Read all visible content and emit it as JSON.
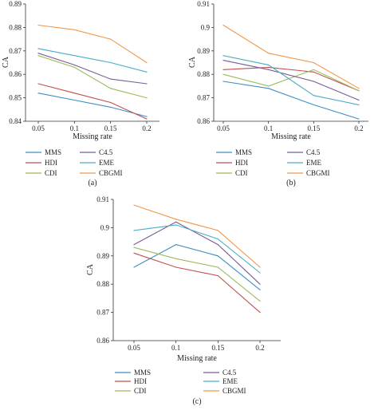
{
  "chart_data": [
    {
      "type": "line",
      "panel_label": "(a)",
      "xlabel": "Missing rate",
      "ylabel": "CA",
      "x": [
        0.05,
        0.1,
        0.15,
        0.2
      ],
      "x_ticks": [
        "0.05",
        "0.1",
        "0.15",
        "0.2"
      ],
      "ylim": [
        0.84,
        0.89
      ],
      "y_ticks": [
        "0.84",
        "0.85",
        "0.86",
        "0.87",
        "0.88",
        "0.89"
      ],
      "series": [
        {
          "name": "MMS",
          "color": "#3d8fc4",
          "values": [
            0.852,
            0.849,
            0.846,
            0.842
          ]
        },
        {
          "name": "HDI",
          "color": "#c0504d",
          "values": [
            0.856,
            0.852,
            0.848,
            0.841
          ]
        },
        {
          "name": "CDI",
          "color": "#9bbb59",
          "values": [
            0.868,
            0.863,
            0.854,
            0.85
          ]
        },
        {
          "name": "C4.5",
          "color": "#7a5c94",
          "values": [
            0.869,
            0.864,
            0.858,
            0.856
          ]
        },
        {
          "name": "EME",
          "color": "#4bacc6",
          "values": [
            0.871,
            0.868,
            0.865,
            0.861
          ]
        },
        {
          "name": "CBGMI",
          "color": "#f0974a",
          "values": [
            0.881,
            0.879,
            0.875,
            0.865
          ]
        }
      ]
    },
    {
      "type": "line",
      "panel_label": "(b)",
      "xlabel": "Missing rate",
      "ylabel": "CA",
      "x": [
        0.05,
        0.1,
        0.15,
        0.2
      ],
      "x_ticks": [
        "0.05",
        "0.1",
        "0.15",
        "0.2"
      ],
      "ylim": [
        0.86,
        0.91
      ],
      "y_ticks": [
        "0.86",
        "0.87",
        "0.88",
        "0.89",
        "0.9",
        "0.91"
      ],
      "series": [
        {
          "name": "MMS",
          "color": "#3d8fc4",
          "values": [
            0.877,
            0.874,
            0.867,
            0.861
          ]
        },
        {
          "name": "HDI",
          "color": "#c0504d",
          "values": [
            0.882,
            0.883,
            0.881,
            0.873
          ]
        },
        {
          "name": "CDI",
          "color": "#9bbb59",
          "values": [
            0.88,
            0.875,
            0.882,
            0.873
          ]
        },
        {
          "name": "C4.5",
          "color": "#7a5c94",
          "values": [
            0.886,
            0.882,
            0.877,
            0.869
          ]
        },
        {
          "name": "EME",
          "color": "#4bacc6",
          "values": [
            0.888,
            0.884,
            0.871,
            0.867
          ]
        },
        {
          "name": "CBGMI",
          "color": "#f0974a",
          "values": [
            0.901,
            0.889,
            0.885,
            0.874
          ]
        }
      ]
    },
    {
      "type": "line",
      "panel_label": "(c)",
      "xlabel": "Missing rate",
      "ylabel": "CA",
      "x": [
        0.05,
        0.1,
        0.15,
        0.2
      ],
      "x_ticks": [
        "0.05",
        "0.1",
        "0.15",
        "0.2"
      ],
      "ylim": [
        0.86,
        0.91
      ],
      "y_ticks": [
        "0.86",
        "0.87",
        "0.88",
        "0.89",
        "0.9",
        "0.91"
      ],
      "series": [
        {
          "name": "MMS",
          "color": "#3d8fc4",
          "values": [
            0.886,
            0.894,
            0.89,
            0.878
          ]
        },
        {
          "name": "HDI",
          "color": "#c0504d",
          "values": [
            0.891,
            0.886,
            0.883,
            0.87
          ]
        },
        {
          "name": "CDI",
          "color": "#9bbb59",
          "values": [
            0.893,
            0.889,
            0.886,
            0.874
          ]
        },
        {
          "name": "C4.5",
          "color": "#7a5c94",
          "values": [
            0.894,
            0.902,
            0.894,
            0.88
          ]
        },
        {
          "name": "EME",
          "color": "#4bacc6",
          "values": [
            0.899,
            0.901,
            0.896,
            0.884
          ]
        },
        {
          "name": "CBGMI",
          "color": "#f0974a",
          "values": [
            0.908,
            0.903,
            0.899,
            0.886
          ]
        }
      ]
    }
  ]
}
